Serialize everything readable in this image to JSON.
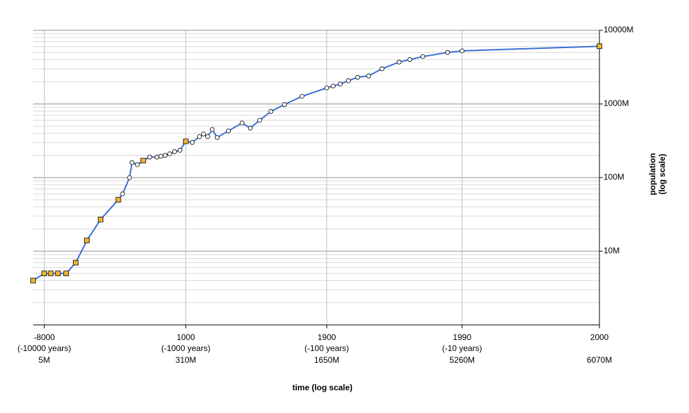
{
  "chart_data": {
    "type": "line",
    "x_label": "time (log scale)",
    "y_label": [
      "population",
      "(log scale)"
    ],
    "xscale": "log-time-before-end",
    "yscale": "log",
    "grid": true,
    "minor_grid": true,
    "xlim": [
      -10000,
      2000
    ],
    "ylim": [
      1,
      10000
    ],
    "xticks": [
      {
        "value": -8000,
        "label": "-8000",
        "note": "(-10000 years)",
        "pop": "5M"
      },
      {
        "value": 1000,
        "label": "1000",
        "note": "(-1000 years)",
        "pop": "310M"
      },
      {
        "value": 1900,
        "label": "1900",
        "note": "(-100 years)",
        "pop": "1650M"
      },
      {
        "value": 1990,
        "label": "1990",
        "note": "(-10 years)",
        "pop": "5260M"
      },
      {
        "value": 2000,
        "label": "2000",
        "pop": "6070M"
      }
    ],
    "yticks": [
      {
        "value": 10,
        "label": "10M"
      },
      {
        "value": 100,
        "label": "100M"
      },
      {
        "value": 1000,
        "label": "1000M"
      },
      {
        "value": 10000,
        "label": "10000M"
      }
    ],
    "series": [
      {
        "name": "population",
        "color": "#3a6fd8",
        "x": [
          -10000,
          -8000,
          -7000,
          -6000,
          -5000,
          -4000,
          -3000,
          -2000,
          -1000,
          -800,
          -500,
          -400,
          -200,
          1,
          200,
          400,
          500,
          600,
          700,
          800,
          900,
          1000,
          1100,
          1200,
          1250,
          1300,
          1350,
          1400,
          1500,
          1600,
          1650,
          1700,
          1750,
          1800,
          1850,
          1900,
          1910,
          1920,
          1930,
          1940,
          1950,
          1960,
          1970,
          1975,
          1980,
          1987,
          1990,
          2000
        ],
        "values": [
          4,
          5,
          5,
          5,
          5,
          7,
          14,
          27,
          50,
          60,
          100,
          160,
          150,
          170,
          190,
          190,
          195,
          200,
          210,
          225,
          235,
          310,
          300,
          360,
          390,
          360,
          450,
          350,
          430,
          550,
          470,
          600,
          790,
          980,
          1270,
          1650,
          1750,
          1860,
          2070,
          2300,
          2400,
          3000,
          3700,
          4000,
          4400,
          5000,
          5260,
          6070
        ],
        "markers": [
          "square",
          "square",
          "square",
          "square",
          "square",
          "square",
          "square",
          "square",
          "square",
          "circle",
          "circle",
          "circle",
          "circle",
          "square",
          "circle",
          "circle",
          "circle",
          "circle",
          "circle",
          "circle",
          "circle",
          "square",
          "circle",
          "circle",
          "circle",
          "circle",
          "circle",
          "circle",
          "circle",
          "circle",
          "circle",
          "circle",
          "circle",
          "circle",
          "circle",
          "circle",
          "circle",
          "circle",
          "circle",
          "circle",
          "circle",
          "circle",
          "circle",
          "circle",
          "circle",
          "circle",
          "circle",
          "square"
        ]
      }
    ]
  }
}
